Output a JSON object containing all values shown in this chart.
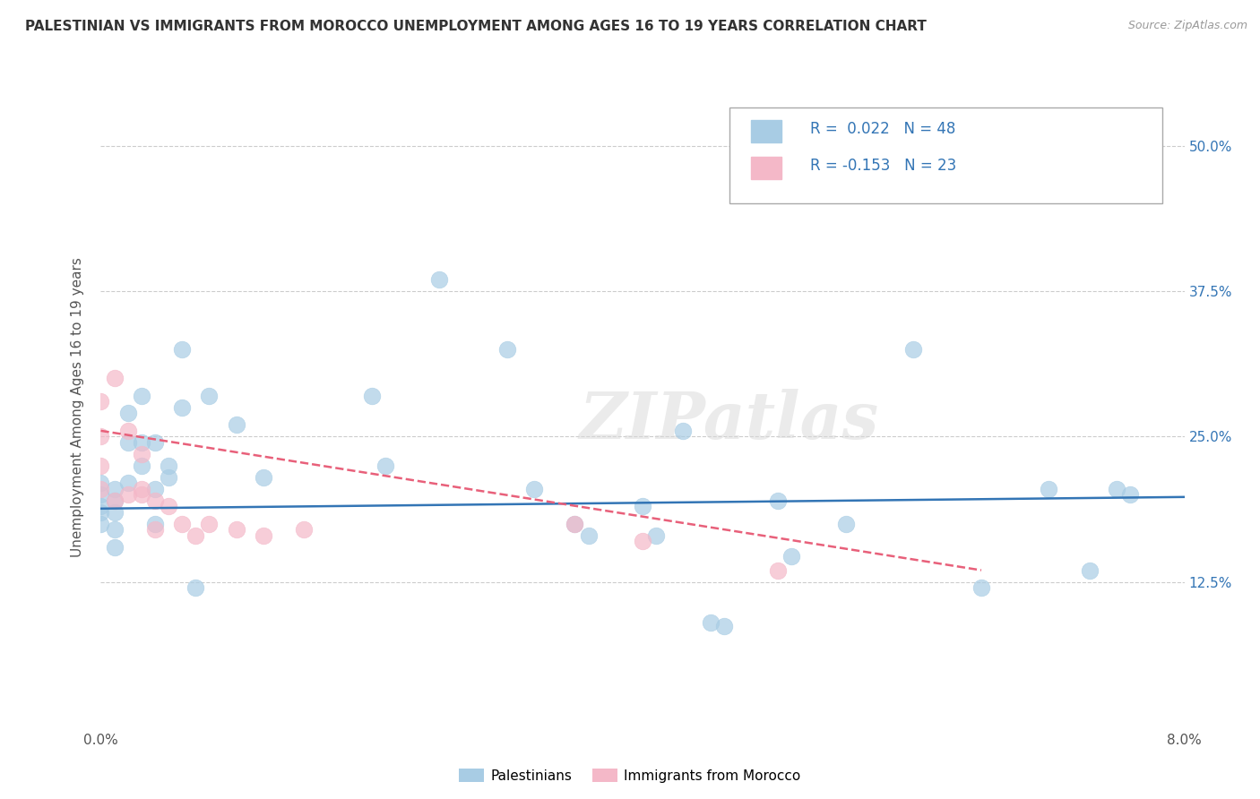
{
  "title": "PALESTINIAN VS IMMIGRANTS FROM MOROCCO UNEMPLOYMENT AMONG AGES 16 TO 19 YEARS CORRELATION CHART",
  "source": "Source: ZipAtlas.com",
  "ylabel": "Unemployment Among Ages 16 to 19 years",
  "xlim": [
    0.0,
    0.08
  ],
  "ylim": [
    0.0,
    0.55
  ],
  "xticks": [
    0.0,
    0.01,
    0.02,
    0.03,
    0.04,
    0.05,
    0.06,
    0.07,
    0.08
  ],
  "xtick_labels": [
    "0.0%",
    "",
    "",
    "",
    "",
    "",
    "",
    "",
    "8.0%"
  ],
  "ytick_labels": [
    "",
    "12.5%",
    "25.0%",
    "37.5%",
    "50.0%"
  ],
  "yticks": [
    0.0,
    0.125,
    0.25,
    0.375,
    0.5
  ],
  "blue_R": "0.022",
  "blue_N": "48",
  "pink_R": "-0.153",
  "pink_N": "23",
  "blue_color": "#a8cce4",
  "pink_color": "#f4b8c8",
  "blue_line_color": "#3375b5",
  "pink_line_color": "#e8607a",
  "watermark": "ZIPatlas",
  "blue_points_x": [
    0.0,
    0.0,
    0.0,
    0.0,
    0.0,
    0.001,
    0.001,
    0.001,
    0.001,
    0.001,
    0.002,
    0.002,
    0.002,
    0.003,
    0.003,
    0.003,
    0.004,
    0.004,
    0.004,
    0.005,
    0.005,
    0.006,
    0.006,
    0.007,
    0.008,
    0.01,
    0.012,
    0.02,
    0.021,
    0.025,
    0.03,
    0.032,
    0.035,
    0.036,
    0.04,
    0.041,
    0.043,
    0.045,
    0.046,
    0.05,
    0.051,
    0.055,
    0.06,
    0.065,
    0.07,
    0.073,
    0.075,
    0.076
  ],
  "blue_points_y": [
    0.19,
    0.2,
    0.21,
    0.185,
    0.175,
    0.195,
    0.205,
    0.185,
    0.155,
    0.17,
    0.21,
    0.245,
    0.27,
    0.225,
    0.245,
    0.285,
    0.205,
    0.245,
    0.175,
    0.215,
    0.225,
    0.275,
    0.325,
    0.12,
    0.285,
    0.26,
    0.215,
    0.285,
    0.225,
    0.385,
    0.325,
    0.205,
    0.175,
    0.165,
    0.19,
    0.165,
    0.255,
    0.09,
    0.087,
    0.195,
    0.147,
    0.175,
    0.325,
    0.12,
    0.205,
    0.135,
    0.205,
    0.2
  ],
  "pink_points_x": [
    0.0,
    0.0,
    0.0,
    0.0,
    0.001,
    0.001,
    0.002,
    0.002,
    0.003,
    0.003,
    0.003,
    0.004,
    0.004,
    0.005,
    0.006,
    0.007,
    0.008,
    0.01,
    0.012,
    0.015,
    0.035,
    0.04,
    0.05
  ],
  "pink_points_y": [
    0.205,
    0.225,
    0.25,
    0.28,
    0.195,
    0.3,
    0.2,
    0.255,
    0.2,
    0.205,
    0.235,
    0.195,
    0.17,
    0.19,
    0.175,
    0.165,
    0.175,
    0.17,
    0.165,
    0.17,
    0.175,
    0.16,
    0.135
  ],
  "blue_line_x": [
    0.0,
    0.08
  ],
  "blue_line_y": [
    0.188,
    0.198
  ],
  "pink_line_x": [
    0.0,
    0.065
  ],
  "pink_line_y": [
    0.255,
    0.135
  ],
  "background_color": "#ffffff",
  "grid_color": "#cccccc"
}
